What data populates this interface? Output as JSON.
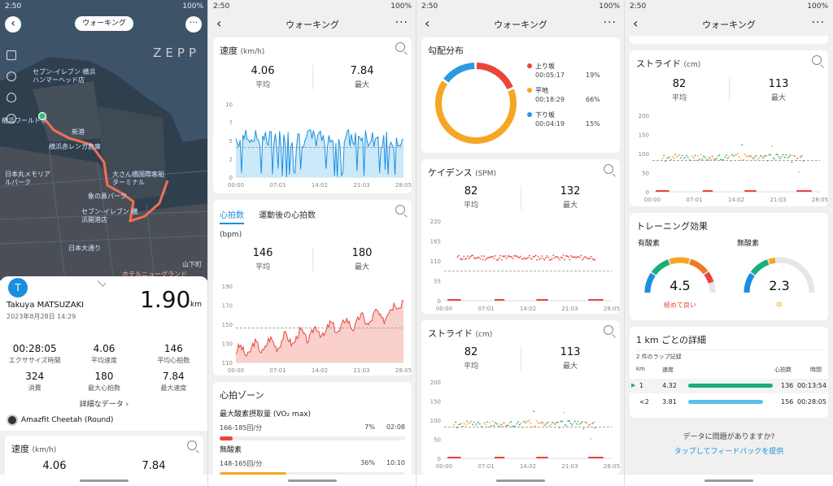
{
  "status": {
    "time": "2:50",
    "battery": "100%"
  },
  "panel1": {
    "activity_chip": "ウォーキング",
    "map_brand": "ZEPP",
    "map_labels": [
      "セブン-イレブン 横浜ハンマーヘッド店",
      "新港",
      "横浜ワールドポーターズ",
      "日本丸メモリアルパーク",
      "横浜赤レンガ倉庫",
      "象の鼻パーク",
      "大さん橋国際客船ターミナル",
      "セブン-イレブン 横浜開港店",
      "日本大通り",
      "ホテルニューグランド",
      "山下町"
    ],
    "user_initial": "T",
    "user_name": "Takuya MATSUZAKI",
    "date": "2023年8月28日 14:29",
    "distance": "1.90",
    "distance_unit": "km",
    "stats": [
      {
        "value": "00:28:05",
        "label": "エクササイズ時間"
      },
      {
        "value": "4.06",
        "label": "平均速度"
      },
      {
        "value": "146",
        "label": "平均心拍数"
      },
      {
        "value": "324",
        "label": "消費"
      },
      {
        "value": "180",
        "label": "最大心拍数"
      },
      {
        "value": "7.84",
        "label": "最大速度"
      }
    ],
    "details_link": "詳細なデータ ›",
    "device": "Amazfit Cheetah (Round)",
    "speed_card_title": "速度",
    "speed_card_unit": "(km/h)",
    "speed_avg": "4.06",
    "speed_max": "7.84"
  },
  "panel2": {
    "header": "ウォーキング",
    "speed": {
      "title": "速度",
      "unit": "(km/h)",
      "avg": "4.06",
      "avg_label": "平均",
      "max": "7.84",
      "max_label": "最大",
      "yticks": [
        "10",
        "7",
        "5",
        "2",
        "0"
      ],
      "xticks": [
        "00:00",
        "07:01",
        "14:02",
        "21:03",
        "28:05"
      ]
    },
    "hr": {
      "tab1": "心拍数",
      "tab2": "運動後の心拍数",
      "unit": "(bpm)",
      "avg": "146",
      "avg_label": "平均",
      "max": "180",
      "max_label": "最大",
      "yticks": [
        "190",
        "170",
        "150",
        "130",
        "110"
      ],
      "xticks": [
        "00:00",
        "07:01",
        "14:02",
        "21:03",
        "28:05"
      ]
    },
    "zones": {
      "title": "心拍ゾーン",
      "rows": [
        {
          "name": "最大酸素摂取量 (VO₂ max)",
          "range": "166-185回/分",
          "pct": "7%",
          "time": "02:08",
          "color": "#e8453c",
          "fill": 0.07
        },
        {
          "name": "無酸素",
          "range": "148-165回/分",
          "pct": "36%",
          "time": "10:10",
          "color": "#f5a623",
          "fill": 0.36
        }
      ]
    }
  },
  "panel3": {
    "header": "ウォーキング",
    "slope": {
      "title": "勾配分布",
      "items": [
        {
          "label": "上り坂",
          "time": "00:05:17",
          "pct": "19%",
          "color": "#e8453c"
        },
        {
          "label": "平地",
          "time": "00:18:29",
          "pct": "66%",
          "color": "#f5a623"
        },
        {
          "label": "下り坂",
          "time": "00:04:19",
          "pct": "15%",
          "color": "#2a9be0"
        }
      ]
    },
    "cadence": {
      "title": "ケイデンス",
      "unit": "(SPM)",
      "avg": "82",
      "avg_label": "平均",
      "max": "132",
      "max_label": "最大",
      "yticks": [
        "220",
        "165",
        "110",
        "55",
        "0"
      ],
      "xticks": [
        "00:00",
        "07:01",
        "14:02",
        "21:03",
        "28:05"
      ]
    },
    "stride": {
      "title": "ストライド",
      "unit": "(cm)",
      "avg": "82",
      "avg_label": "平均",
      "max": "113",
      "max_label": "最大",
      "yticks": [
        "200",
        "150",
        "100",
        "50",
        "0"
      ],
      "xticks": [
        "00:00",
        "07:01",
        "14:02",
        "21:03",
        "28:05"
      ]
    }
  },
  "panel4": {
    "header": "ウォーキング",
    "stride": {
      "title": "ストライド",
      "unit": "(cm)",
      "avg": "82",
      "avg_label": "平均",
      "max": "113",
      "max_label": "最大",
      "yticks": [
        "200",
        "150",
        "100",
        "50",
        "0"
      ],
      "xticks": [
        "00:00",
        "07:01",
        "14:02",
        "21:03",
        "28:05"
      ]
    },
    "training": {
      "title": "トレーニング効果",
      "aerobic_label": "有酸素",
      "aerobic_value": "4.5",
      "aerobic_status": "極めて良い",
      "anaerobic_label": "無酸素",
      "anaerobic_value": "2.3",
      "anaerobic_status": "中"
    },
    "laps": {
      "title": "1 km ごとの詳細",
      "count": "2 件のラップ記録",
      "headers": [
        "km",
        "速度",
        "心拍数",
        "時間"
      ],
      "rows": [
        {
          "km": "1",
          "speed": "4.32",
          "hr": "136",
          "time": "00:13:54",
          "color": "#1aaf7a",
          "fill": 1.0
        },
        {
          "km": "<2",
          "speed": "3.81",
          "hr": "156",
          "time": "00:28:05",
          "color": "#5bc0e8",
          "fill": 0.88
        }
      ]
    },
    "feedback_q": "データに問題がありますか?",
    "feedback_link": "タップしてフィードバックを提供"
  }
}
